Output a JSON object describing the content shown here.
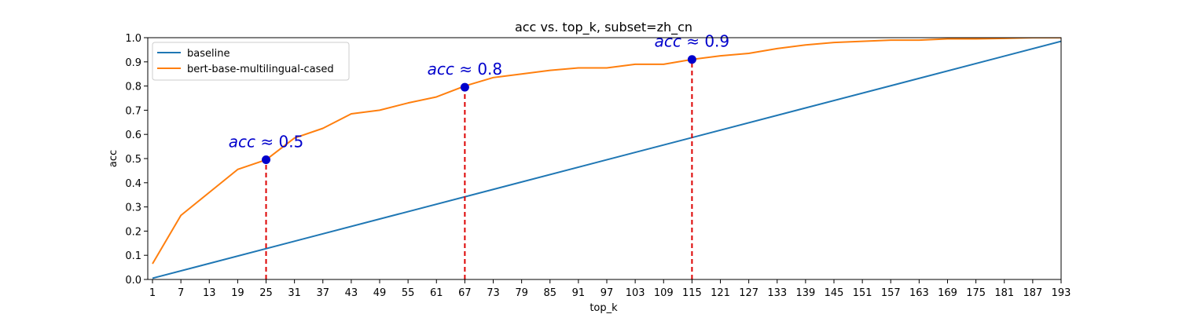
{
  "chart_data": {
    "type": "line",
    "title": "acc vs. top_k, subset=zh_cn",
    "xlabel": "top_k",
    "ylabel": "acc",
    "xlim": [
      0,
      193
    ],
    "ylim": [
      0.0,
      1.0
    ],
    "xticks": [
      "1",
      "7",
      "13",
      "19",
      "25",
      "31",
      "37",
      "43",
      "49",
      "55",
      "61",
      "67",
      "73",
      "79",
      "85",
      "91",
      "97",
      "103",
      "109",
      "115",
      "121",
      "127",
      "133",
      "139",
      "145",
      "151",
      "157",
      "163",
      "169",
      "175",
      "181",
      "187",
      "193"
    ],
    "yticks": [
      "0.0",
      "0.1",
      "0.2",
      "0.3",
      "0.4",
      "0.5",
      "0.6",
      "0.7",
      "0.8",
      "0.9",
      "1.0"
    ],
    "grid": false,
    "legend_position": "upper-left",
    "series": [
      {
        "name": "baseline",
        "color": "#1f77b4",
        "x": [
          1,
          193
        ],
        "y": [
          0.005,
          0.985
        ]
      },
      {
        "name": "bert-base-multilingual-cased",
        "color": "#ff7f0e",
        "x": [
          1,
          7,
          13,
          19,
          25,
          31,
          37,
          43,
          49,
          55,
          61,
          67,
          73,
          79,
          85,
          91,
          97,
          103,
          109,
          115,
          121,
          127,
          133,
          139,
          145,
          151,
          157,
          163,
          169,
          175,
          181,
          187,
          193
        ],
        "y": [
          0.065,
          0.265,
          0.36,
          0.455,
          0.495,
          0.585,
          0.625,
          0.685,
          0.7,
          0.73,
          0.755,
          0.8,
          0.835,
          0.85,
          0.865,
          0.875,
          0.875,
          0.89,
          0.89,
          0.91,
          0.925,
          0.935,
          0.955,
          0.97,
          0.98,
          0.985,
          0.99,
          0.99,
          0.995,
          0.995,
          0.997,
          1.0,
          1.0
        ]
      }
    ],
    "annotations": [
      {
        "x": 25,
        "y": 0.495,
        "text_var": "acc",
        "text_rest": " ≈ 0.5"
      },
      {
        "x": 67,
        "y": 0.795,
        "text_var": "acc",
        "text_rest": " ≈ 0.8"
      },
      {
        "x": 115,
        "y": 0.91,
        "text_var": "acc",
        "text_rest": " ≈ 0.9"
      }
    ],
    "marker_color": "#0000cc",
    "dropline_color": "#dd0000"
  }
}
